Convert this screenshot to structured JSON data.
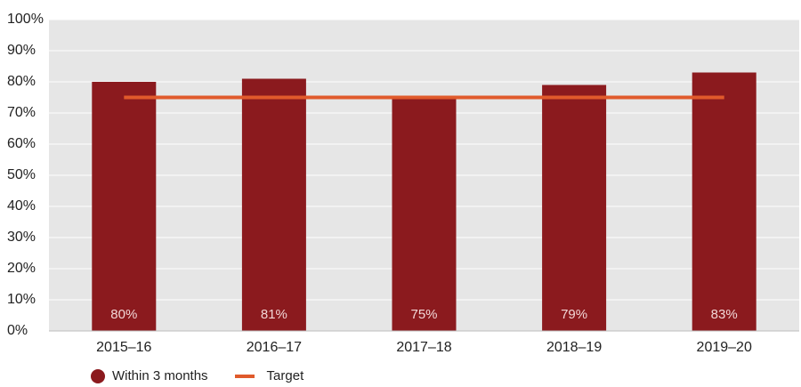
{
  "chart_data": {
    "type": "bar",
    "categories": [
      "2015–16",
      "2016–17",
      "2017–18",
      "2018–19",
      "2019–20"
    ],
    "series": [
      {
        "name": "Within 3 months",
        "values": [
          80,
          81,
          75,
          79,
          83
        ],
        "data_labels": [
          "80%",
          "81%",
          "75%",
          "79%",
          "83%"
        ]
      }
    ],
    "target": {
      "name": "Target",
      "value": 75
    },
    "ylim": [
      0,
      100
    ],
    "yticks": [
      "0%",
      "10%",
      "20%",
      "30%",
      "40%",
      "50%",
      "60%",
      "70%",
      "80%",
      "90%",
      "100%"
    ],
    "grid": true,
    "legend_position": "bottom-left",
    "colors": {
      "bar": "#8b1a1e",
      "target": "#e05a2b",
      "plot_bg": "#e6e6e6",
      "grid": "#ffffff",
      "data_label": "#f2d7d7"
    }
  }
}
